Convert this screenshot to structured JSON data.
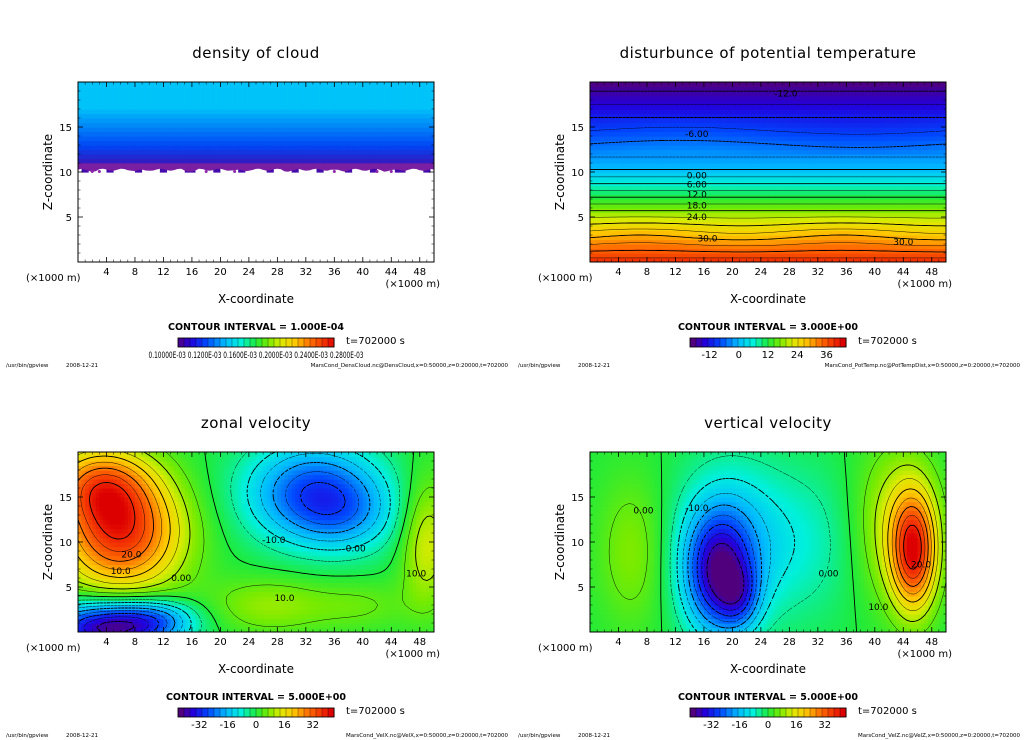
{
  "chart_data": [
    {
      "type": "heatmap",
      "title": "density of cloud",
      "xlabel": "X-coordinate",
      "ylabel": "Z-coordinate",
      "x_unit": "(×1000 m)",
      "z_unit": "(×1000 m)",
      "xlim": [
        0,
        50
      ],
      "ylim": [
        0,
        20
      ],
      "x_ticks": [
        "4",
        "8",
        "12",
        "16",
        "20",
        "24",
        "28",
        "32",
        "36",
        "40",
        "44",
        "48"
      ],
      "y_ticks": [
        "5",
        "10",
        "15"
      ],
      "contour_interval": "CONTOUR INTERVAL = 1.000E-04",
      "time": "t=702000 s",
      "colorbar_label": "0.10000E-03 0.1200E-03 0.1600E-03 0.2000E-03 0.2400E-03 0.2800E-03",
      "footer_path": "/usr/bin/gpview",
      "footer_date": "2008-12-21",
      "footer_file": "MarsCond_DensCloud.nc@DensCloud,x=0:50000,z=0:20000,t=702000",
      "contour_labels": [],
      "field": "cloud_density"
    },
    {
      "type": "heatmap",
      "title": "disturbunce of potential temperature",
      "xlabel": "X-coordinate",
      "ylabel": "Z-coordinate",
      "x_unit": "(×1000 m)",
      "z_unit": "(×1000 m)",
      "xlim": [
        0,
        50
      ],
      "ylim": [
        0,
        20
      ],
      "x_ticks": [
        "4",
        "8",
        "12",
        "16",
        "20",
        "24",
        "28",
        "32",
        "36",
        "40",
        "44",
        "48"
      ],
      "y_ticks": [
        "5",
        "10",
        "15"
      ],
      "contour_interval": "CONTOUR INTERVAL = 3.000E+00",
      "time": "t=702000 s",
      "colorbar_ticks": [
        "-12",
        "0",
        "12",
        "24",
        "36"
      ],
      "colorbar_range": [
        -20,
        44
      ],
      "footer_path": "/usr/bin/gpview",
      "footer_date": "2008-12-21",
      "footer_file": "MarsCond_PotTemp.nc@PotTempDist,x=0:50000,z=0:20000,t=702000",
      "contour_labels": [
        {
          "text": "-12.0",
          "x": 27.5,
          "z": 18.7
        },
        {
          "text": "-6.00",
          "x": 15,
          "z": 14.2
        },
        {
          "text": "0.00",
          "x": 15,
          "z": 9.6
        },
        {
          "text": "6.00",
          "x": 15,
          "z": 8.6
        },
        {
          "text": "12.0",
          "x": 15,
          "z": 7.5
        },
        {
          "text": "18.0",
          "x": 15,
          "z": 6.3
        },
        {
          "text": "24.0",
          "x": 15,
          "z": 5.0
        },
        {
          "text": "30.0",
          "x": 16.5,
          "z": 2.6
        },
        {
          "text": "30.0",
          "x": 44,
          "z": 2.2
        }
      ],
      "field": "potential_temperature"
    },
    {
      "type": "heatmap",
      "title": "zonal velocity",
      "xlabel": "X-coordinate",
      "ylabel": "Z-coordinate",
      "x_unit": "(×1000 m)",
      "z_unit": "(×1000 m)",
      "xlim": [
        0,
        50
      ],
      "ylim": [
        0,
        20
      ],
      "x_ticks": [
        "4",
        "8",
        "12",
        "16",
        "20",
        "24",
        "28",
        "32",
        "36",
        "40",
        "44",
        "48"
      ],
      "y_ticks": [
        "5",
        "10",
        "15"
      ],
      "contour_interval": "CONTOUR INTERVAL = 5.000E+00",
      "time": "t=702000 s",
      "colorbar_ticks": [
        "-32",
        "-16",
        "0",
        "16",
        "32"
      ],
      "colorbar_range": [
        -44,
        44
      ],
      "footer_path": "/usr/bin/gpview",
      "footer_date": "2008-12-21",
      "footer_file": "MarsCond_VelX.nc@VelX,x=0:50000,z=0:20000,t=702000",
      "contour_labels": [
        {
          "text": "20.0",
          "x": 7.5,
          "z": 8.6
        },
        {
          "text": "10.0",
          "x": 6,
          "z": 6.8
        },
        {
          "text": "0.00",
          "x": 14.5,
          "z": 6.0
        },
        {
          "text": "-10.0",
          "x": 27.5,
          "z": 10.2
        },
        {
          "text": "0.00",
          "x": 39,
          "z": 9.3
        },
        {
          "text": "10.0",
          "x": 29,
          "z": 3.8
        },
        {
          "text": "10.0",
          "x": 47.5,
          "z": 6.5
        }
      ],
      "field": "zonal_velocity"
    },
    {
      "type": "heatmap",
      "title": "vertical velocity",
      "xlabel": "X-coordinate",
      "ylabel": "Z-coordinate",
      "x_unit": "(×1000 m)",
      "z_unit": "(×1000 m)",
      "xlim": [
        0,
        50
      ],
      "ylim": [
        0,
        20
      ],
      "x_ticks": [
        "4",
        "8",
        "12",
        "16",
        "20",
        "24",
        "28",
        "32",
        "36",
        "40",
        "44",
        "48"
      ],
      "y_ticks": [
        "5",
        "10",
        "15"
      ],
      "contour_interval": "CONTOUR INTERVAL = 5.000E+00",
      "time": "t=702000 s",
      "colorbar_ticks": [
        "-32",
        "-16",
        "0",
        "16",
        "32"
      ],
      "colorbar_range": [
        -44,
        44
      ],
      "footer_path": "/usr/bin/gpview",
      "footer_date": "2008-12-21",
      "footer_file": "MarsCond_VelZ.nc@VelZ,x=0:50000,z=0:20000,t=702000",
      "contour_labels": [
        {
          "text": "0.00",
          "x": 7.5,
          "z": 13.5
        },
        {
          "text": "-10.0",
          "x": 15,
          "z": 13.8
        },
        {
          "text": "0.00",
          "x": 33.5,
          "z": 6.5
        },
        {
          "text": "10.0",
          "x": 40.5,
          "z": 2.8
        },
        {
          "text": "20.0",
          "x": 46.5,
          "z": 7.5
        }
      ],
      "field": "vertical_velocity"
    }
  ]
}
